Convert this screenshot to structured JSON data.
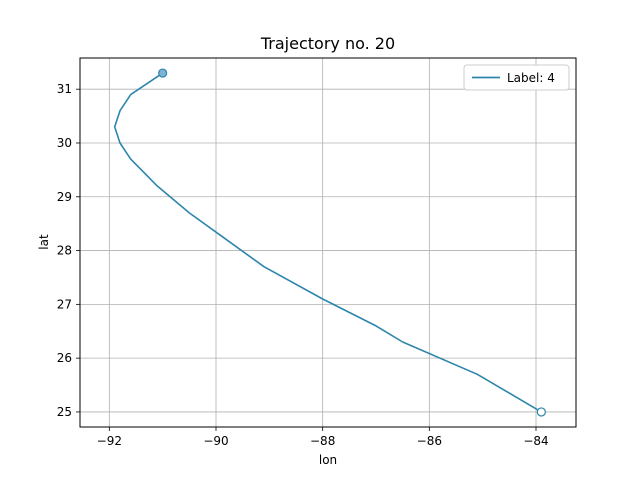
{
  "chart_data": {
    "type": "line",
    "title": "Trajectory no. 20",
    "xlabel": "lon",
    "ylabel": "lat",
    "xlim": [
      -92.55,
      -83.25
    ],
    "ylim": [
      24.72,
      31.58
    ],
    "xticks": [
      -92,
      -90,
      -88,
      -86,
      -84
    ],
    "yticks": [
      25,
      26,
      27,
      28,
      29,
      30,
      31
    ],
    "xtick_labels": [
      "−92",
      "−90",
      "−88",
      "−86",
      "−84"
    ],
    "ytick_labels": [
      "25",
      "26",
      "27",
      "28",
      "29",
      "30",
      "31"
    ],
    "grid": true,
    "legend": {
      "placement": "top-right",
      "entries": [
        "Label: 4"
      ]
    },
    "series_color": "#2e86ab",
    "series": [
      {
        "name": "Label: 4",
        "x": [
          -91.0,
          -91.6,
          -91.8,
          -91.9,
          -91.8,
          -91.6,
          -91.1,
          -90.5,
          -89.8,
          -89.1,
          -88.0,
          -87.0,
          -86.5,
          -85.1,
          -83.9
        ],
        "y": [
          31.3,
          30.9,
          30.6,
          30.3,
          30.0,
          29.7,
          29.2,
          28.7,
          28.2,
          27.7,
          27.1,
          26.6,
          26.3,
          25.7,
          25.0
        ]
      }
    ],
    "start_marker": {
      "x": -91.0,
      "y": 31.3,
      "style": "filled"
    },
    "end_marker": {
      "x": -83.9,
      "y": 25.0,
      "style": "hollow"
    }
  }
}
